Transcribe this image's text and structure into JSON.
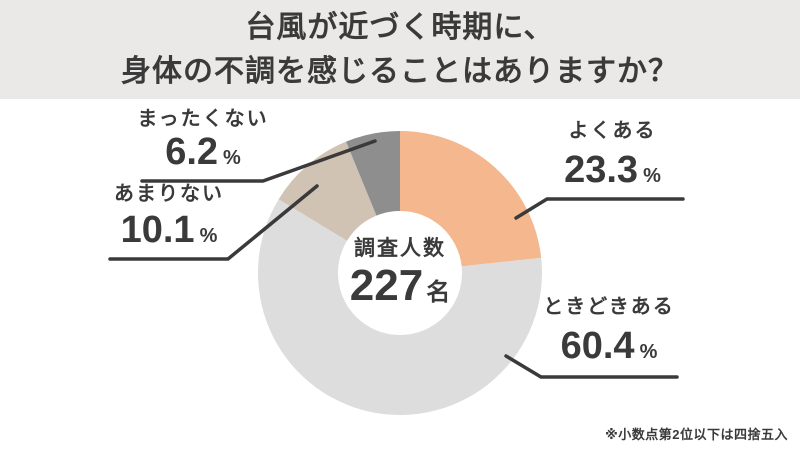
{
  "title": {
    "line1": "台風が近づく時期に、",
    "line2": "身体の不調を感じることはありますか？"
  },
  "chart_data": {
    "type": "pie",
    "subtype": "donut",
    "title": "台風が近づく時期に、身体の不調を感じることはありますか？",
    "direction": "clockwise",
    "start_angle_deg": 0,
    "total_percent": 100,
    "segments": [
      {
        "label": "よくある",
        "value": 23.3,
        "unit": "%",
        "color": "#f5b78e"
      },
      {
        "label": "ときどきある",
        "value": 60.4,
        "unit": "%",
        "color": "#dddddd"
      },
      {
        "label": "あまりない",
        "value": 10.1,
        "unit": "%",
        "color": "#d0c3b4"
      },
      {
        "label": "まったくない",
        "value": 6.2,
        "unit": "%",
        "color": "#8e8e8e"
      }
    ],
    "center_label": {
      "caption": "調査人数",
      "value": "227",
      "unit": "名"
    }
  },
  "footnote": "※小数点第2位以下は四捨五入",
  "colors": {
    "header_bg": "#eae9e7",
    "page_bg": "#ffffff",
    "text": "#3a3a3a",
    "leader_line": "#3a3a3a"
  }
}
